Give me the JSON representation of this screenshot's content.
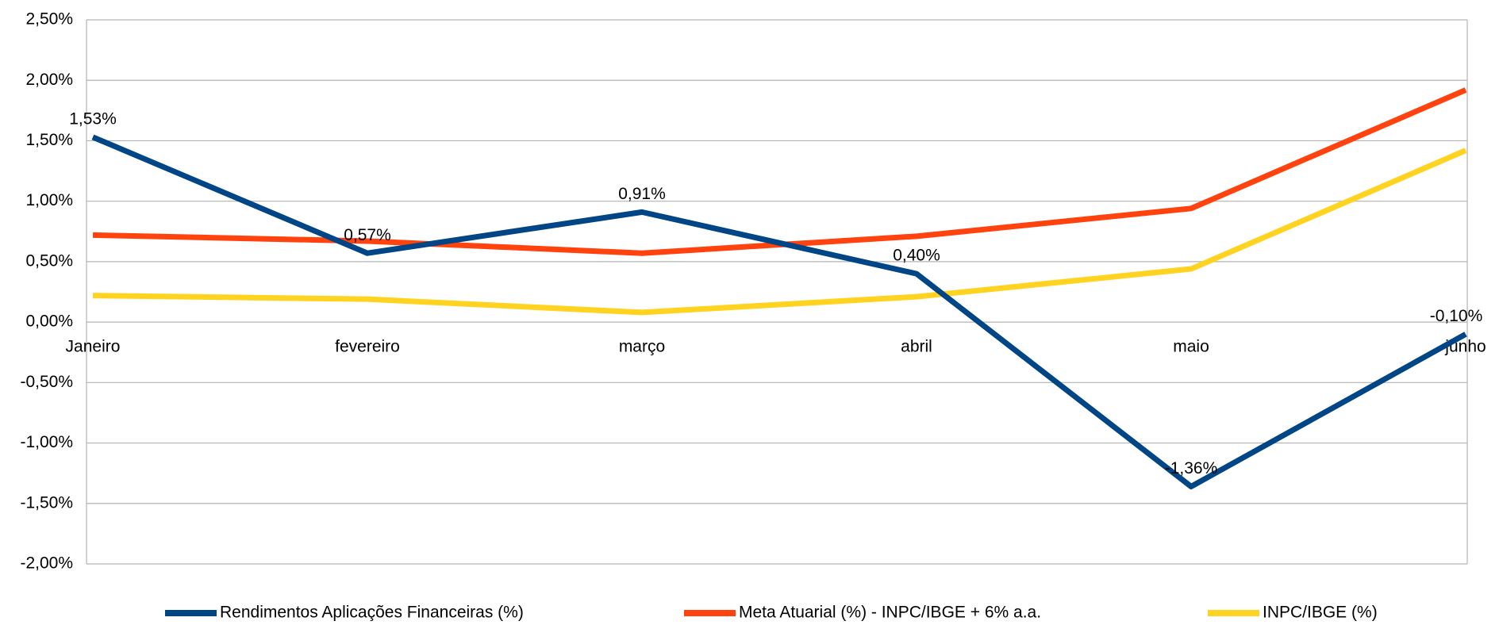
{
  "chart_data": {
    "type": "line",
    "categories": [
      "Janeiro",
      "fevereiro",
      "março",
      "abril",
      "maio",
      "junho"
    ],
    "series": [
      {
        "name": "Rendimentos Aplicações Financeiras (%)",
        "color": "#004586",
        "values": [
          1.53,
          0.57,
          0.91,
          0.4,
          -1.36,
          -0.1
        ],
        "value_labels": [
          "1,53%",
          "0,57%",
          "0,91%",
          "0,40%",
          "-1,36%",
          "-0,10%"
        ]
      },
      {
        "name": "Meta Atuarial (%) - INPC/IBGE + 6% a.a.",
        "color": "#ff420e",
        "values": [
          0.72,
          0.67,
          0.57,
          0.71,
          0.94,
          1.92
        ]
      },
      {
        "name": "INPC/IBGE (%)",
        "color": "#ffd320",
        "values": [
          0.22,
          0.19,
          0.08,
          0.21,
          0.44,
          1.42
        ]
      }
    ],
    "ylim": [
      -2,
      2.5
    ],
    "yticks": [
      {
        "value": -2,
        "label": "-2,00%"
      },
      {
        "value": -1.5,
        "label": "-1,50%"
      },
      {
        "value": -1,
        "label": "-1,00%"
      },
      {
        "value": -0.5,
        "label": "-0,50%"
      },
      {
        "value": 0,
        "label": "0,00%"
      },
      {
        "value": 0.5,
        "label": "0,50%"
      },
      {
        "value": 1,
        "label": "1,00%"
      },
      {
        "value": 1.5,
        "label": "1,50%"
      },
      {
        "value": 2,
        "label": "2,00%"
      },
      {
        "value": 2.5,
        "label": "2,50%"
      }
    ],
    "grid": true
  }
}
